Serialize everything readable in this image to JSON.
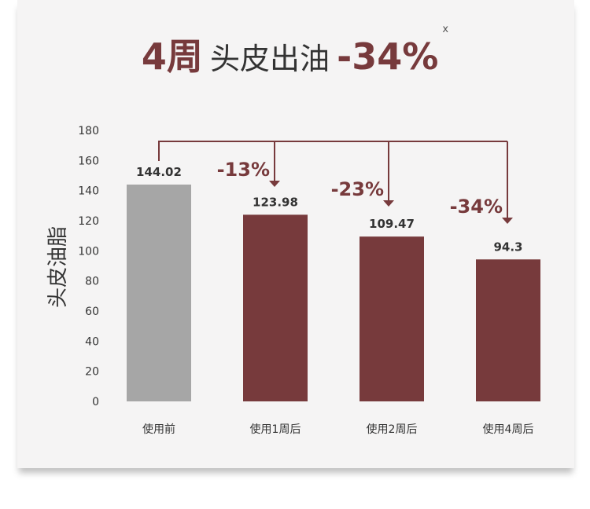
{
  "title": {
    "number": "4周",
    "text": "头皮出油",
    "change": "-34%",
    "superscript": "x"
  },
  "colors": {
    "accent": "#773a3c",
    "baseline_bar": "#a6a6a6",
    "text": "#333333"
  },
  "chart_data": {
    "type": "bar",
    "title": "4周 头皮出油 -34%",
    "ylabel": "头皮油脂",
    "xlabel": "",
    "ylim": [
      0,
      180
    ],
    "yticks": [
      0,
      20,
      40,
      60,
      80,
      100,
      120,
      140,
      160,
      180
    ],
    "grid": false,
    "categories": [
      "使用前",
      "使用1周后",
      "使用2周后",
      "使用4周后"
    ],
    "values": [
      144.02,
      123.98,
      109.47,
      94.3
    ],
    "value_labels": [
      "144.02",
      "123.98",
      "109.47",
      "94.3"
    ],
    "annotations": [
      "",
      "-13%",
      "-23%",
      "-34%"
    ]
  }
}
